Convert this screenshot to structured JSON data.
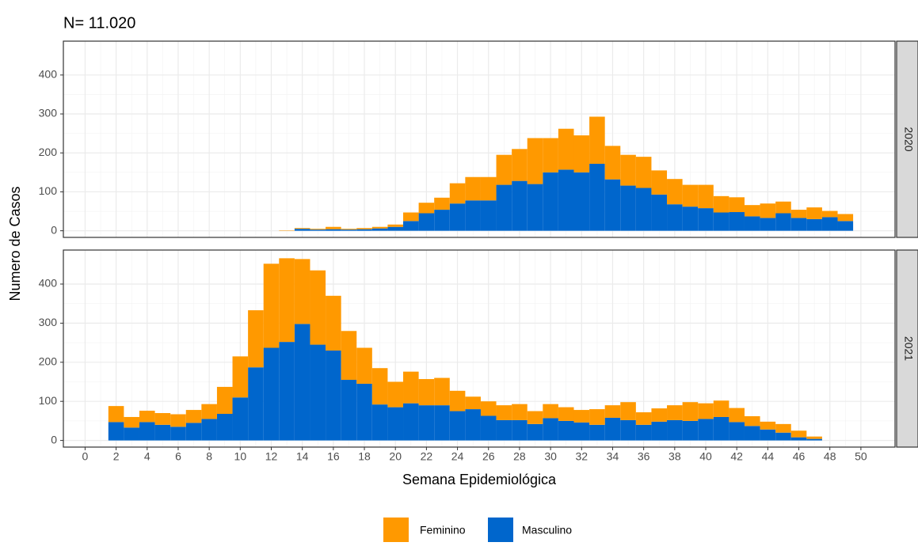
{
  "chart_data": {
    "type": "bar",
    "stacked": true,
    "title": "N= 11.020",
    "x_label": "Semana Epidemiológica",
    "y_label": "Numero de Casos",
    "legend": [
      {
        "name": "Feminino",
        "color": "#FF9900"
      },
      {
        "name": "Masculino",
        "color": "#0066CC"
      }
    ],
    "xlim": [
      -1.4,
      52.2
    ],
    "xticks": [
      0,
      2,
      4,
      6,
      8,
      10,
      12,
      14,
      16,
      18,
      20,
      22,
      24,
      26,
      28,
      30,
      32,
      34,
      36,
      38,
      40,
      42,
      44,
      46,
      48,
      50
    ],
    "ylim": [
      -17,
      487
    ],
    "yticks": [
      0,
      100,
      200,
      300,
      400
    ],
    "grid": true,
    "facets": [
      {
        "label": "2020",
        "x": [
          13,
          14,
          15,
          16,
          17,
          18,
          19,
          20,
          21,
          22,
          23,
          24,
          25,
          26,
          27,
          28,
          29,
          30,
          31,
          32,
          33,
          34,
          35,
          36,
          37,
          38,
          39,
          40,
          41,
          42,
          43,
          44,
          45,
          46,
          47,
          48,
          49
        ],
        "series": [
          {
            "name": "Masculino",
            "color": "#0066CC",
            "values": [
              0,
              5,
              3,
              4,
              3,
              4,
              6,
              10,
              25,
              45,
              54,
              70,
              78,
              78,
              118,
              128,
              120,
              150,
              157,
              150,
              172,
              132,
              116,
              110,
              93,
              68,
              62,
              58,
              47,
              48,
              37,
              33,
              45,
              33,
              30,
              35,
              25
            ]
          },
          {
            "name": "Feminino",
            "color": "#FF9900",
            "values": [
              1,
              2,
              2,
              6,
              2,
              3,
              4,
              6,
              22,
              27,
              31,
              52,
              60,
              60,
              77,
              82,
              118,
              88,
              105,
              95,
              121,
              86,
              79,
              80,
              62,
              65,
              56,
              60,
              42,
              38,
              29,
              37,
              30,
              21,
              30,
              16,
              18
            ]
          }
        ]
      },
      {
        "label": "2021",
        "x": [
          2,
          3,
          4,
          5,
          6,
          7,
          8,
          9,
          10,
          11,
          12,
          13,
          14,
          15,
          16,
          17,
          18,
          19,
          20,
          21,
          22,
          23,
          24,
          25,
          26,
          27,
          28,
          29,
          30,
          31,
          32,
          33,
          34,
          35,
          36,
          37,
          38,
          39,
          40,
          41,
          42,
          43,
          44,
          45,
          46,
          47
        ],
        "series": [
          {
            "name": "Masculino",
            "color": "#0066CC",
            "values": [
              47,
              33,
              47,
              40,
              35,
              45,
              55,
              68,
              110,
              187,
              237,
              252,
              298,
              245,
              230,
              155,
              145,
              92,
              85,
              95,
              90,
              90,
              75,
              80,
              63,
              52,
              52,
              42,
              57,
              50,
              46,
              40,
              58,
              52,
              40,
              48,
              52,
              50,
              55,
              60,
              47,
              37,
              28,
              20,
              8,
              4
            ]
          },
          {
            "name": "Feminino",
            "color": "#FF9900",
            "values": [
              41,
              27,
              29,
              30,
              32,
              33,
              38,
              69,
              105,
              146,
              215,
              214,
              166,
              190,
              140,
              125,
              92,
              93,
              65,
              81,
              67,
              70,
              52,
              32,
              37,
              38,
              41,
              33,
              36,
              35,
              32,
              40,
              32,
              46,
              32,
              34,
              38,
              48,
              40,
              42,
              36,
              25,
              20,
              22,
              17,
              6
            ]
          }
        ]
      }
    ]
  }
}
